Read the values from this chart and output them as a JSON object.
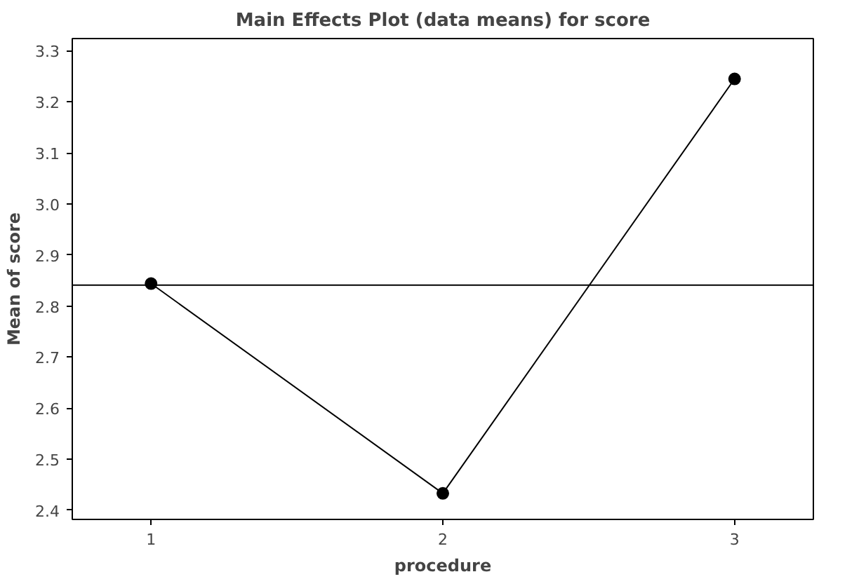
{
  "chart_data": {
    "type": "line",
    "title": "Main Effects Plot (data means) for score",
    "xlabel": "procedure",
    "ylabel": "Mean of score",
    "x": [
      1,
      2,
      3
    ],
    "series": [
      {
        "color": "#000000",
        "values": [
          2.844,
          2.433,
          3.245
        ]
      }
    ],
    "xlim": [
      0.73,
      3.27
    ],
    "xticks": [
      1,
      2,
      3
    ],
    "ylim": [
      2.382,
      3.324
    ],
    "yticks": [
      2.4,
      2.5,
      2.6,
      2.7,
      2.8,
      2.9,
      {
        "value": 3.0,
        "label": "3.0"
      },
      3.1,
      3.2,
      3.3
    ],
    "ref_lines": [
      {
        "axis": "y",
        "value": 2.841,
        "color": "#000000"
      }
    ],
    "grid": false,
    "marker": "circle",
    "line_style": "solid"
  }
}
